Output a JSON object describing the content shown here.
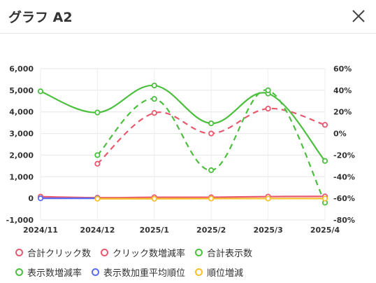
{
  "window": {
    "title": "グラフ A2",
    "close_icon": "close-icon"
  },
  "chart_data": {
    "type": "line",
    "categories": [
      "2024/11",
      "2024/12",
      "2025/1",
      "2025/2",
      "2025/3",
      "2025/4"
    ],
    "y_left": {
      "ylim": [
        -1000,
        6000
      ],
      "ticks": [
        "6,000",
        "5,000",
        "4,000",
        "3,000",
        "2,000",
        "1,000",
        "0",
        "-1,000"
      ]
    },
    "y_right": {
      "ylim": [
        -80,
        60
      ],
      "ticks": [
        "60%",
        "40%",
        "20%",
        "0%",
        "-20%",
        "-40%",
        "-60%",
        "-80%"
      ]
    },
    "grid": true,
    "legend_position": "bottom",
    "series": [
      {
        "name": "合計クリック数",
        "axis": "left",
        "color": "#e8596f",
        "style": "solid",
        "values": [
          80,
          30,
          50,
          50,
          80,
          90
        ]
      },
      {
        "name": "クリック数増減率",
        "axis": "right",
        "color": "#e8596f",
        "style": "dashed",
        "values": [
          null,
          -28,
          19,
          0,
          23,
          8
        ]
      },
      {
        "name": "合計表示数",
        "axis": "left",
        "color": "#4cbf3f",
        "style": "solid",
        "values": [
          4950,
          3970,
          5220,
          3470,
          4850,
          1730
        ]
      },
      {
        "name": "表示数増減率",
        "axis": "right",
        "color": "#4cbf3f",
        "style": "dashed",
        "values": [
          null,
          -20,
          32,
          -34,
          40,
          -64
        ]
      },
      {
        "name": "表示数加重平均順位",
        "axis": "left",
        "color": "#5b6cf0",
        "style": "solid",
        "values": [
          0,
          0,
          null,
          null,
          null,
          null
        ]
      },
      {
        "name": "順位増減",
        "axis": "left",
        "color": "#f5c02c",
        "style": "solid",
        "values": [
          null,
          -20,
          -20,
          -10,
          -10,
          -10
        ]
      }
    ]
  }
}
